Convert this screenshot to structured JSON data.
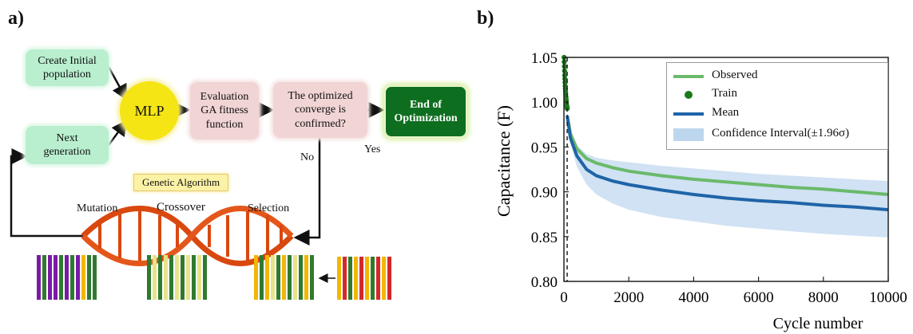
{
  "panel_a": {
    "label": "a)",
    "create_initial": [
      "Create Initial",
      "population"
    ],
    "next_generation": [
      "Next",
      "generation"
    ],
    "mlp": "MLP",
    "evaluation": [
      "Evaluation",
      "GA fitness",
      "function"
    ],
    "converge": [
      "The optimized",
      "converge is",
      "confirmed?"
    ],
    "end": [
      "End of",
      "Optimization"
    ],
    "no": "No",
    "yes": "Yes",
    "genetic_algorithm": "Genetic Algorithm",
    "mutation": "Mutation",
    "crossover": "Crossover",
    "selection": "Selection",
    "colors": {
      "green_box": "#b9efcf",
      "pink_box": "#f1d4d4",
      "mlp": "#f5e514",
      "end": "#0d6e1f",
      "dna": "#d9480f"
    }
  },
  "panel_b": {
    "label": "b)",
    "chart_data": {
      "type": "line",
      "xlabel": "Cycle number",
      "ylabel": "Capacitance (F)",
      "xlim": [
        0,
        10000
      ],
      "ylim": [
        0.8,
        1.05
      ],
      "x_ticks": [
        "0",
        "2000",
        "4000",
        "6000",
        "8000",
        "10000"
      ],
      "y_ticks": [
        "0.80",
        "0.85",
        "0.90",
        "0.95",
        "1.00",
        "1.05"
      ],
      "legend_placement": "top-right",
      "legend": [
        "Observed",
        "Train",
        "Mean",
        "Confidence Interval(±1.96σ)"
      ],
      "series": [
        {
          "name": "Observed",
          "color": "#6aba6a",
          "x": [
            100,
            200,
            400,
            700,
            1000,
            1500,
            2000,
            3000,
            4000,
            5000,
            6000,
            7000,
            8000,
            9000,
            10000
          ],
          "y": [
            0.985,
            0.965,
            0.948,
            0.937,
            0.932,
            0.927,
            0.923,
            0.918,
            0.914,
            0.911,
            0.908,
            0.905,
            0.903,
            0.9,
            0.897
          ]
        },
        {
          "name": "Train",
          "color": "#1a7a1a",
          "x": [
            5,
            10,
            15,
            20,
            25,
            30,
            35,
            40,
            45,
            50,
            55,
            60,
            65,
            70,
            75,
            80,
            85,
            90,
            95,
            100
          ],
          "y": [
            1.05,
            1.045,
            1.04,
            1.035,
            1.03,
            1.026,
            1.022,
            1.018,
            1.015,
            1.012,
            1.009,
            1.006,
            1.004,
            1.002,
            1.0,
            0.998,
            0.996,
            0.995,
            0.994,
            0.993
          ]
        },
        {
          "name": "Mean",
          "color": "#1f64a8",
          "x": [
            100,
            200,
            400,
            700,
            1000,
            1500,
            2000,
            3000,
            4000,
            5000,
            6000,
            7000,
            8000,
            9000,
            10000
          ],
          "y": [
            0.985,
            0.96,
            0.94,
            0.925,
            0.918,
            0.912,
            0.908,
            0.902,
            0.897,
            0.893,
            0.89,
            0.888,
            0.885,
            0.883,
            0.88
          ]
        }
      ],
      "confidence_interval": {
        "name": "Confidence Interval(±1.96σ)",
        "color": "#bcd6ee",
        "x": [
          100,
          200,
          400,
          700,
          1000,
          1500,
          2000,
          3000,
          4000,
          5000,
          6000,
          7000,
          8000,
          9000,
          10000
        ],
        "lower": [
          0.985,
          0.955,
          0.928,
          0.908,
          0.897,
          0.887,
          0.88,
          0.872,
          0.867,
          0.862,
          0.859,
          0.856,
          0.853,
          0.851,
          0.849
        ],
        "upper": [
          0.985,
          0.965,
          0.952,
          0.942,
          0.938,
          0.935,
          0.933,
          0.929,
          0.926,
          0.923,
          0.92,
          0.918,
          0.916,
          0.914,
          0.912
        ]
      },
      "vline_x": 100
    }
  }
}
